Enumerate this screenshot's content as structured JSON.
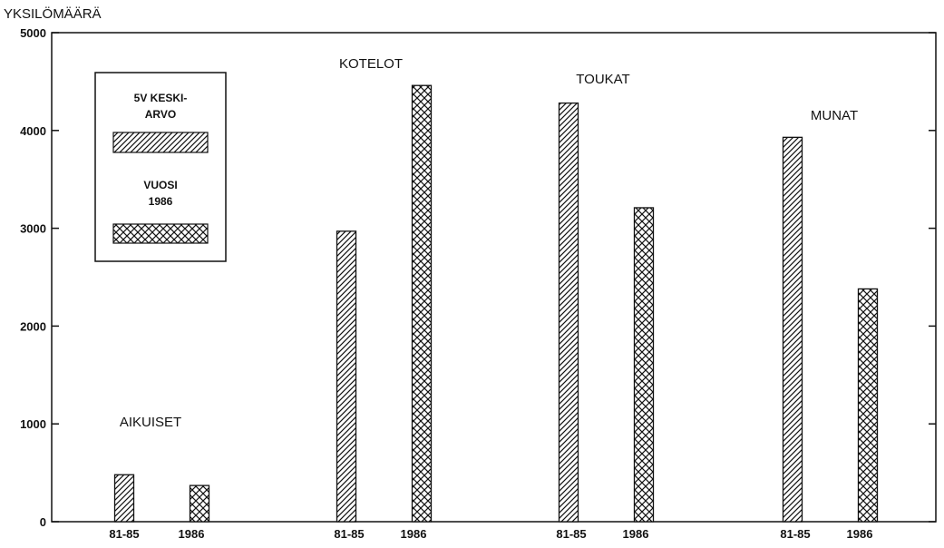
{
  "chart_data": {
    "type": "bar",
    "ylabel": "YKSILÖMÄÄRÄ",
    "ylim": [
      0,
      5000
    ],
    "yticks": [
      "0",
      "1000",
      "2000",
      "3000",
      "4000",
      "5000"
    ],
    "groups": [
      {
        "label": "AIKUISET",
        "bars": [
          {
            "label": "81-85",
            "value": 480
          },
          {
            "label": "1986",
            "value": 370
          }
        ]
      },
      {
        "label": "KOTELOT",
        "bars": [
          {
            "label": "81-85",
            "value": 2970
          },
          {
            "label": "1986",
            "value": 4460
          }
        ]
      },
      {
        "label": "TOUKAT",
        "bars": [
          {
            "label": "81-85",
            "value": 4280
          },
          {
            "label": "1986",
            "value": 3210
          }
        ]
      },
      {
        "label": "MUNAT",
        "bars": [
          {
            "label": "81-85",
            "value": 3930
          },
          {
            "label": "1986",
            "value": 2380
          }
        ]
      }
    ],
    "series": [
      {
        "name_lines": [
          "5V KESKI-",
          "ARVO"
        ],
        "pattern": "hatch"
      },
      {
        "name_lines": [
          "VUOSI",
          "1986"
        ],
        "pattern": "crosshatch"
      }
    ],
    "legend": "top-left",
    "grid": false
  }
}
